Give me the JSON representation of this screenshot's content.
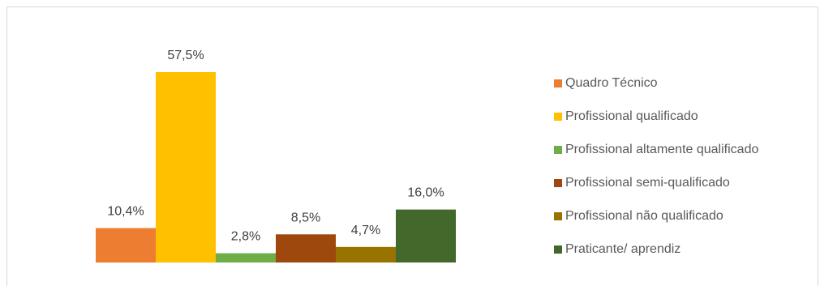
{
  "chart_data": {
    "type": "bar",
    "categories": [
      "Quadro Técnico",
      "Profissional qualificado",
      "Profissional altamente qualificado",
      "Profissional semi-qualificado",
      "Profissional não qualificado",
      "Praticante/ aprendiz"
    ],
    "values": [
      10.4,
      57.5,
      2.8,
      8.5,
      4.7,
      16.0
    ],
    "data_labels": [
      "10,4%",
      "57,5%",
      "2,8%",
      "8,5%",
      "4,7%",
      "16,0%"
    ],
    "colors": [
      "#ED7D31",
      "#FFC000",
      "#70AD47",
      "#9E480E",
      "#997300",
      "#43682B"
    ],
    "title": "",
    "xlabel": "",
    "ylabel": "",
    "ylim": [
      0,
      57.5
    ],
    "grid": false,
    "legend_position": "right"
  }
}
